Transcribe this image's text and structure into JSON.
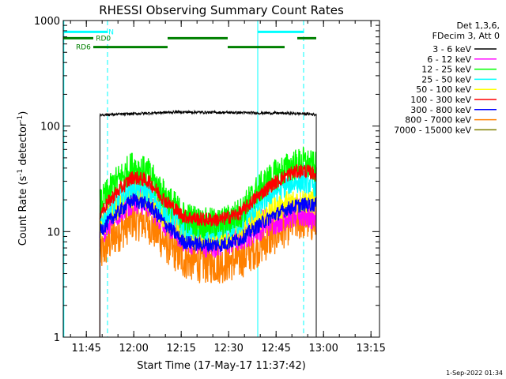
{
  "chart_data": {
    "type": "line",
    "title": "RHESSI Observing Summary Count Rates",
    "xlabel": "Start Time (17-May-17 11:37:42)",
    "ylabel_main": "Count Rate (s",
    "ylabel_sup1": "-1",
    "ylabel_mid": " detector",
    "ylabel_sup2": "-1",
    "ylabel_end": ")",
    "y_scale": "log",
    "ylim": [
      1,
      1000
    ],
    "xlim_minutes_after_start": [
      0,
      100
    ],
    "x_ticks": [
      "11:45",
      "12:00",
      "12:15",
      "12:30",
      "12:45",
      "13:00",
      "13:15"
    ],
    "y_ticks": [
      "1",
      "10",
      "100",
      "1000"
    ],
    "timestamp": "1-Sep-2022 01:34",
    "legend_header": [
      "Det 1,3,6,",
      "FDecim 3, Att 0"
    ],
    "legend_position": "right",
    "series": [
      {
        "name": "3 - 6 keV",
        "color": "#000000",
        "flat": 128,
        "times": [
          11.6,
          13,
          20,
          28,
          36,
          45,
          55,
          63,
          72,
          78,
          80
        ],
        "values": [
          128,
          128,
          130,
          133,
          136,
          135,
          134,
          133,
          132,
          130,
          128
        ]
      },
      {
        "name": "6 - 12 keV",
        "color": "#ff00ff",
        "times": [
          11.6,
          16,
          22,
          27,
          32,
          38,
          44,
          50,
          56,
          61,
          66,
          72,
          76,
          80
        ],
        "values": [
          10,
          15,
          21,
          19,
          13,
          9,
          8,
          8,
          9,
          11,
          13,
          15,
          15,
          14
        ]
      },
      {
        "name": "12 - 25 keV",
        "color": "#00ff00",
        "times": [
          11.6,
          16,
          22,
          27,
          32,
          38,
          44,
          50,
          56,
          61,
          66,
          72,
          76,
          80
        ],
        "values": [
          18,
          28,
          42,
          35,
          22,
          14,
          12,
          12,
          15,
          24,
          33,
          42,
          45,
          40
        ]
      },
      {
        "name": "25 - 50 keV",
        "color": "#00ffff",
        "times": [
          11.6,
          16,
          22,
          27,
          32,
          38,
          44,
          50,
          56,
          61,
          66,
          72,
          76,
          80
        ],
        "values": [
          12,
          18,
          27,
          24,
          16,
          11,
          10,
          10,
          12,
          17,
          23,
          29,
          30,
          27
        ]
      },
      {
        "name": "50 - 100 keV",
        "color": "#ffff00",
        "times": [
          11.6,
          16,
          22,
          27,
          32,
          38,
          44,
          50,
          56,
          61,
          66,
          72,
          76,
          80
        ],
        "values": [
          11,
          16,
          23,
          21,
          14,
          10,
          9,
          9,
          10,
          13,
          16,
          19,
          20,
          19
        ]
      },
      {
        "name": "100 - 300 keV",
        "color": "#ff0000",
        "times": [
          11.6,
          16,
          22,
          27,
          32,
          38,
          44,
          50,
          56,
          61,
          66,
          72,
          76,
          80
        ],
        "values": [
          15,
          22,
          33,
          30,
          20,
          14,
          13,
          13,
          15,
          21,
          28,
          36,
          38,
          35
        ]
      },
      {
        "name": "300 - 800 keV",
        "color": "#0000ff",
        "times": [
          11.6,
          16,
          22,
          27,
          32,
          38,
          44,
          50,
          56,
          61,
          66,
          72,
          76,
          80
        ],
        "values": [
          10,
          14,
          20,
          18,
          12,
          8,
          7.5,
          7.5,
          8.5,
          11,
          14,
          17,
          18,
          18
        ]
      },
      {
        "name": "800 - 7000 keV",
        "color": "#ff8000",
        "times": [
          11.6,
          16,
          22,
          27,
          32,
          38,
          44,
          50,
          56,
          61,
          66,
          72,
          76,
          80
        ],
        "values": [
          6,
          9,
          13,
          12,
          8,
          5.5,
          5,
          5,
          5.5,
          7,
          9,
          12,
          13,
          12
        ]
      },
      {
        "name": "7000 - 15000 keV",
        "color": "#808000",
        "times": [],
        "values": []
      }
    ],
    "flags": [
      {
        "name": "N",
        "color": "#00ffff",
        "segments": [
          [
            0,
            14
          ],
          [
            61.5,
            76
          ]
        ],
        "level": 780
      },
      {
        "name": "RD0",
        "color": "#008000",
        "segments": [
          [
            0,
            9.5
          ],
          [
            33,
            52
          ],
          [
            74,
            80
          ]
        ],
        "level": 680
      },
      {
        "name": "RD6",
        "color": "#008000",
        "segments": [
          [
            9.5,
            33
          ],
          [
            52,
            70
          ]
        ],
        "level": 560
      }
    ],
    "vlines": [
      {
        "time": 0.2,
        "style": "solid",
        "color": "#00ffff"
      },
      {
        "time": 14,
        "style": "dashed",
        "color": "#00ffff"
      },
      {
        "time": 61.5,
        "style": "solid",
        "color": "#00ffff"
      },
      {
        "time": 76,
        "style": "dashed",
        "color": "#00ffff"
      }
    ]
  }
}
